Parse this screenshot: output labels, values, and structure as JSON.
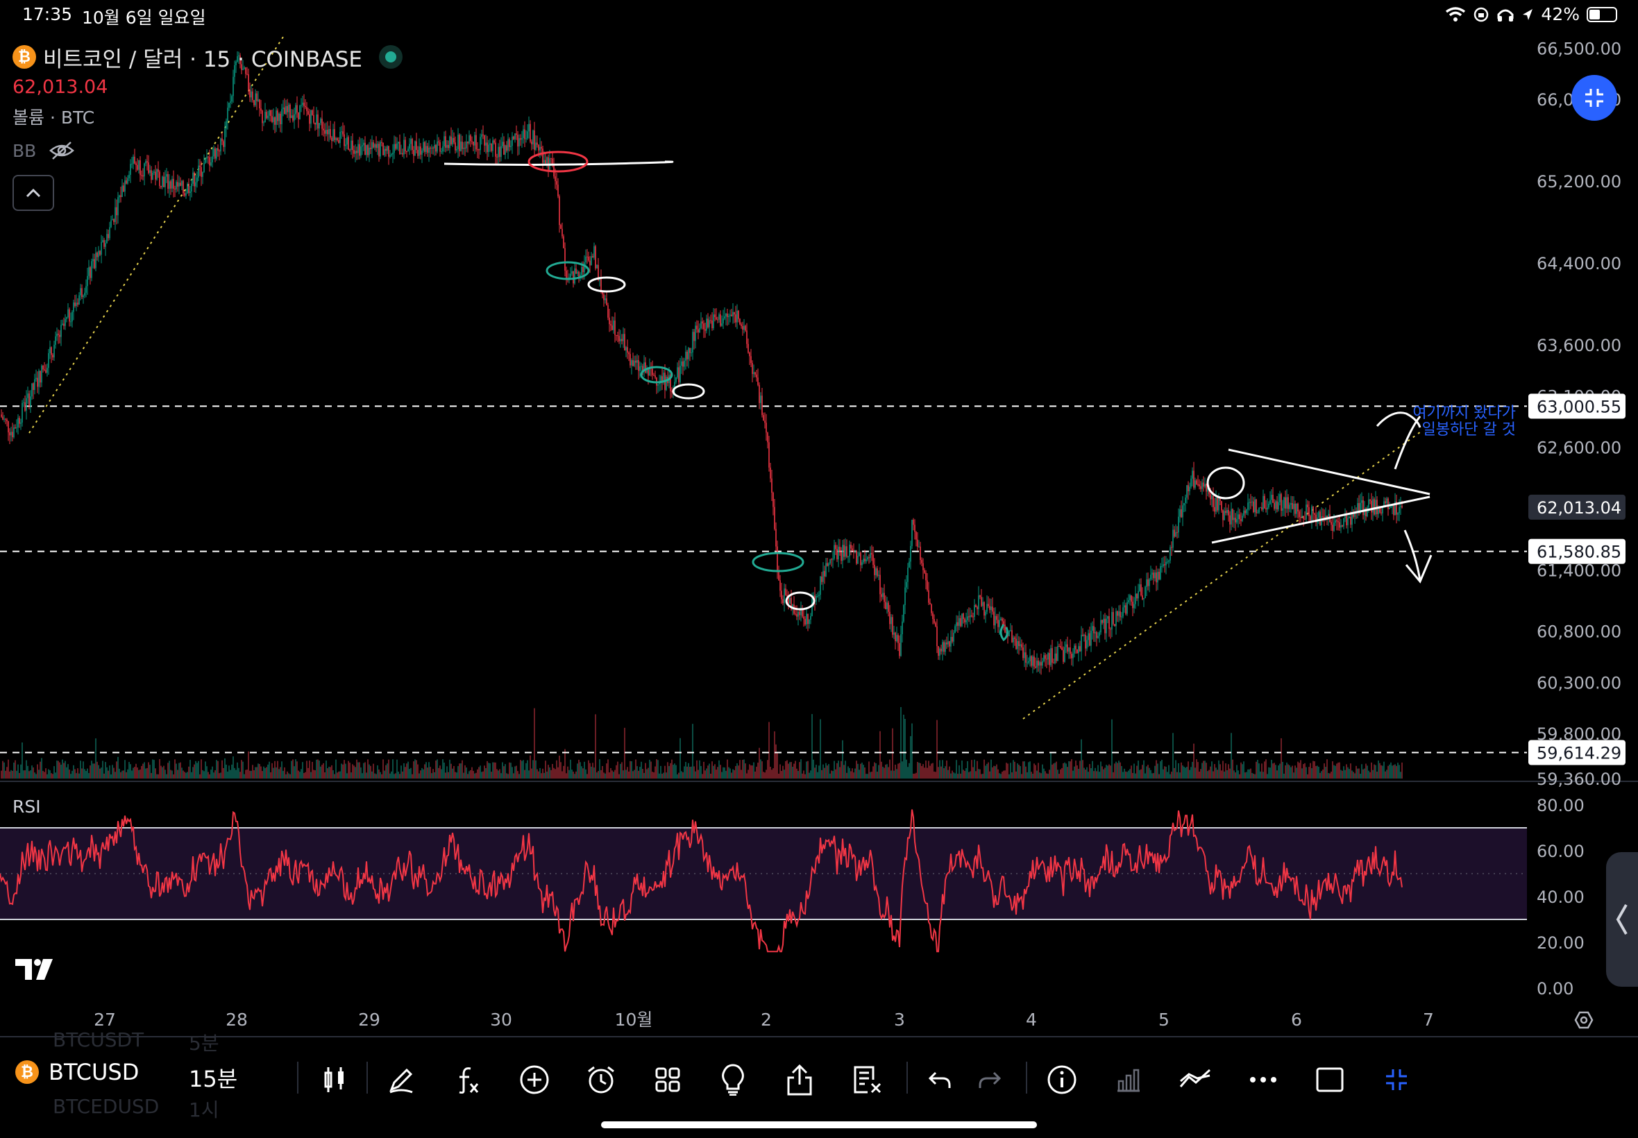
{
  "status": {
    "time": "17:35",
    "date": "10월 6일 일요일",
    "battery": "42%",
    "battery_level": 0.42
  },
  "legend": {
    "symbol_title": "비트코인 / 달러 · 15 · COINBASE",
    "last_price": "62,013.04",
    "volume_label": "볼륨 · BTC",
    "bb_label": "BB"
  },
  "price_axis": {
    "ticks": [
      "66,500.00",
      "66,000.00",
      "65,200.00",
      "64,400.00",
      "63,600.00",
      "63,100.00",
      "62,600.00",
      "61,400.00",
      "60,800.00",
      "60,300.00",
      "59,800.00",
      "59,360.00"
    ]
  },
  "price_labels": [
    {
      "text": "63,000.55",
      "value": 63000.55,
      "style": "level"
    },
    {
      "text": "62,013.04",
      "value": 62013.04,
      "style": "current"
    },
    {
      "text": "61,580.85",
      "value": 61580.85,
      "style": "level"
    },
    {
      "text": "59,614.29",
      "value": 59614.29,
      "style": "level"
    }
  ],
  "annotation": {
    "line1": "여기까지 왔다가",
    "line2": "일봉하단 갈 것"
  },
  "rsi": {
    "label": "RSI",
    "ticks": [
      "80.00",
      "60.00",
      "40.00",
      "20.00",
      "0.00"
    ],
    "upper_band": 70,
    "lower_band": 30,
    "middle": 50
  },
  "time_axis": {
    "ticks": [
      "27",
      "28",
      "29",
      "30",
      "10월",
      "2",
      "3",
      "4",
      "5",
      "6",
      "7"
    ]
  },
  "chart_data": {
    "type": "candlestick",
    "title": "비트코인 / 달러 · 15 · COINBASE",
    "x_ticks": [
      "27",
      "28",
      "29",
      "30",
      "10월",
      "2",
      "3",
      "4",
      "5",
      "6",
      "7"
    ],
    "ylim": [
      59360,
      66700
    ],
    "horizontal_levels": [
      63000.55,
      61580.85,
      59614.29
    ],
    "last_price": 62013.04,
    "approx_close_path": [
      {
        "x": "26.0",
        "y": 63300
      },
      {
        "x": "26.3",
        "y": 62750
      },
      {
        "x": "26.7",
        "y": 63800
      },
      {
        "x": "27.0",
        "y": 64600
      },
      {
        "x": "27.2",
        "y": 65400
      },
      {
        "x": "27.6",
        "y": 65100
      },
      {
        "x": "27.9",
        "y": 65600
      },
      {
        "x": "28.0",
        "y": 66400
      },
      {
        "x": "28.2",
        "y": 65800
      },
      {
        "x": "28.5",
        "y": 65900
      },
      {
        "x": "28.8",
        "y": 65600
      },
      {
        "x": "29.0",
        "y": 65500
      },
      {
        "x": "29.5",
        "y": 65550
      },
      {
        "x": "29.8",
        "y": 65600
      },
      {
        "x": "30.0",
        "y": 65500
      },
      {
        "x": "30.2",
        "y": 65700
      },
      {
        "x": "30.4",
        "y": 65300
      },
      {
        "x": "30.5",
        "y": 64200
      },
      {
        "x": "30.7",
        "y": 64500
      },
      {
        "x": "30.8",
        "y": 63900
      },
      {
        "x": "30.9",
        "y": 63700
      },
      {
        "x": "10월",
        "y": 63400
      },
      {
        "x": "1.3",
        "y": 63200
      },
      {
        "x": "1.5",
        "y": 63800
      },
      {
        "x": "1.8",
        "y": 63900
      },
      {
        "x": "2.0",
        "y": 62800
      },
      {
        "x": "2.1",
        "y": 61200
      },
      {
        "x": "2.3",
        "y": 60900
      },
      {
        "x": "2.5",
        "y": 61600
      },
      {
        "x": "2.8",
        "y": 61500
      },
      {
        "x": "3.0",
        "y": 60600
      },
      {
        "x": "3.1",
        "y": 61900
      },
      {
        "x": "3.3",
        "y": 60600
      },
      {
        "x": "3.6",
        "y": 61100
      },
      {
        "x": "3.8",
        "y": 60800
      },
      {
        "x": "4.0",
        "y": 60500
      },
      {
        "x": "4.3",
        "y": 60600
      },
      {
        "x": "4.6",
        "y": 60900
      },
      {
        "x": "5.0",
        "y": 61400
      },
      {
        "x": "5.2",
        "y": 62300
      },
      {
        "x": "5.5",
        "y": 61900
      },
      {
        "x": "5.8",
        "y": 62100
      },
      {
        "x": "6.0",
        "y": 62000
      },
      {
        "x": "6.3",
        "y": 61850
      },
      {
        "x": "6.5",
        "y": 62000
      },
      {
        "x": "6.8",
        "y": 62013
      }
    ],
    "rsi_ylim": [
      0,
      80
    ],
    "rsi_bands": [
      30,
      70
    ]
  },
  "bottom_bar": {
    "symbol": "BTCUSD",
    "interval": "15분",
    "ghost_rows": [
      {
        "symbol": "BTCUSDT",
        "interval": "5분"
      },
      {
        "symbol": "BTCEDUSD",
        "interval": "1시"
      }
    ]
  }
}
